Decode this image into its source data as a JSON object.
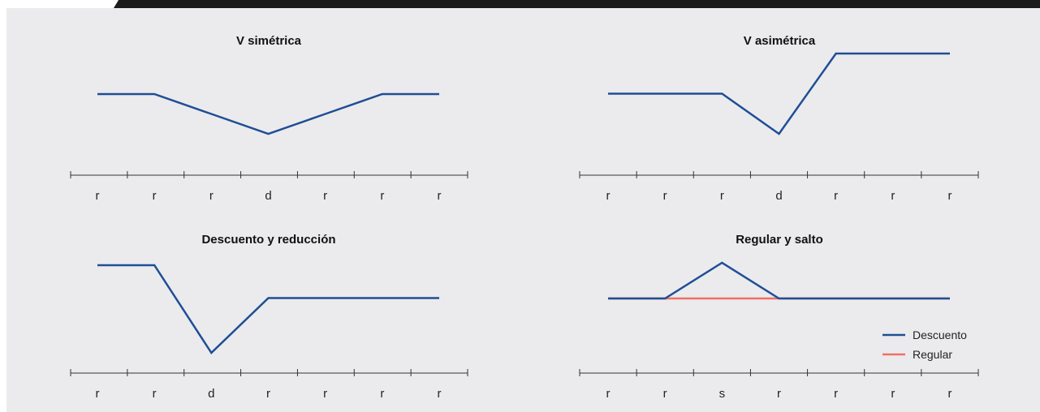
{
  "colors": {
    "background": "#ebebed",
    "top_bar": "#1c1c1c",
    "descuento": "#1f4e96",
    "regular": "#f07067",
    "axis": "#333333"
  },
  "legend": {
    "items": [
      {
        "label": "Descuento",
        "color": "#1f4e96"
      },
      {
        "label": "Regular",
        "color": "#f07067"
      }
    ]
  },
  "chart_data": [
    {
      "type": "line",
      "title": "V simétrica",
      "categories": [
        "r",
        "r",
        "r",
        "d",
        "r",
        "r",
        "r"
      ],
      "series": [
        {
          "key": "descuento",
          "values": [
            2,
            2,
            1,
            0,
            1,
            2,
            2
          ],
          "x": [
            0,
            1,
            2,
            3,
            4,
            5,
            6
          ]
        }
      ]
    },
    {
      "type": "line",
      "title": "V asimétrica",
      "categories": [
        "r",
        "r",
        "r",
        "d",
        "r",
        "r",
        "r"
      ],
      "series": [
        {
          "key": "descuento",
          "values": [
            2,
            2,
            2,
            0,
            4,
            4,
            4
          ],
          "x": [
            0,
            1,
            2,
            3,
            4,
            5,
            6
          ]
        }
      ]
    },
    {
      "type": "line",
      "title": "Descuento y reducción",
      "categories": [
        "r",
        "r",
        "d",
        "r",
        "r",
        "r",
        "r"
      ],
      "series": [
        {
          "key": "descuento",
          "values": [
            4,
            4,
            0,
            2.5,
            2.5,
            2.5,
            2.5
          ],
          "x": [
            0,
            1,
            2,
            3,
            4,
            5,
            6
          ]
        }
      ]
    },
    {
      "type": "line",
      "title": "Regular y salto",
      "categories": [
        "r",
        "r",
        "s",
        "r",
        "r",
        "r",
        "r"
      ],
      "series": [
        {
          "key": "descuento",
          "values": [
            2,
            2,
            4,
            2,
            2,
            2,
            2
          ],
          "x": [
            0,
            1,
            2,
            3,
            4,
            5,
            6
          ]
        },
        {
          "key": "regular",
          "values": [
            2,
            2,
            2,
            2,
            2,
            2,
            2
          ],
          "x": [
            0,
            1,
            2,
            3,
            4,
            5,
            6
          ]
        }
      ]
    }
  ]
}
